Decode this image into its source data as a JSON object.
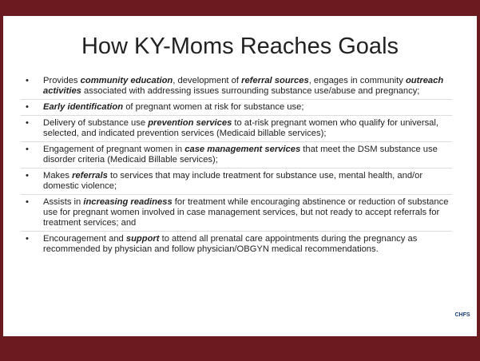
{
  "title": "How KY-Moms Reaches Goals",
  "bullets": [
    [
      {
        "t": "Provides "
      },
      {
        "t": "community education",
        "em": true
      },
      {
        "t": ", development of "
      },
      {
        "t": "referral sources",
        "em": true
      },
      {
        "t": ", engages in community "
      },
      {
        "t": "outreach activities",
        "em": true
      },
      {
        "t": " associated with addressing issues surrounding substance use/abuse and pregnancy;"
      }
    ],
    [
      {
        "t": "Early identification",
        "em": true
      },
      {
        "t": " of pregnant women at risk for substance use;"
      }
    ],
    [
      {
        "t": "Delivery of substance use "
      },
      {
        "t": "prevention services",
        "em": true
      },
      {
        "t": " to at-risk pregnant women who qualify for universal, selected, and indicated prevention services (Medicaid billable services);"
      }
    ],
    [
      {
        "t": "Engagement of pregnant women in "
      },
      {
        "t": "case management services",
        "em": true
      },
      {
        "t": " that meet the DSM substance use disorder criteria (Medicaid Billable services);"
      }
    ],
    [
      {
        "t": "Makes "
      },
      {
        "t": "referrals",
        "em": true
      },
      {
        "t": " to services that may include treatment for substance use, mental health, and/or domestic violence;"
      }
    ],
    [
      {
        "t": "Assists in "
      },
      {
        "t": "increasing readiness",
        "em": true
      },
      {
        "t": " for treatment while encouraging abstinence or reduction of substance use for pregnant women involved in case management services, but not ready to accept referrals for treatment services; and"
      }
    ],
    [
      {
        "t": "Encouragement and "
      },
      {
        "t": "support",
        "em": true
      },
      {
        "t": " to attend all prenatal care appointments during the pregnancy as recommended by physician and follow physician/OBGYN medical recommendations."
      }
    ]
  ],
  "logo": "CHFS"
}
